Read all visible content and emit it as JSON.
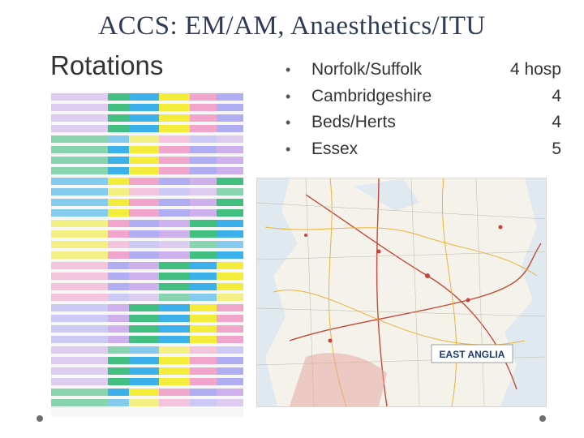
{
  "slide": {
    "title": "ACCS: EM/AM, Anaesthetics/ITU",
    "subtitle": "Rotations"
  },
  "bullets": [
    {
      "name": "Norfolk/Suffolk",
      "count": "4 hosp"
    },
    {
      "name": "Cambridgeshire",
      "count": "4"
    },
    {
      "name": "Beds/Herts",
      "count": "4"
    },
    {
      "name": "Essex",
      "count": "5"
    }
  ],
  "images": {
    "rotation_table": "rotations-spreadsheet-thumbnail",
    "map": "east-anglia-road-map",
    "map_label": "EAST ANGLIA"
  },
  "colors": {
    "title": "#2d3a58",
    "purple": "#c9a9ea",
    "green": "#2eb872",
    "blue": "#26a7e8",
    "yellow": "#f2ea25",
    "pink": "#f09bc4",
    "lilac": "#a9a4f2"
  }
}
